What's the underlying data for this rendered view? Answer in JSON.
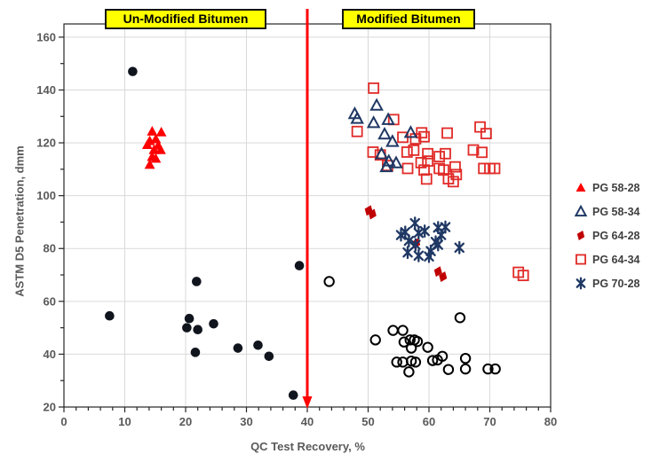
{
  "chart_data": {
    "type": "scatter",
    "title": "",
    "xlabel": "QC Test Recovery, %",
    "ylabel": "ASTM D5 Penetration, dmm",
    "xlim": [
      0,
      80
    ],
    "ylim": [
      20,
      165
    ],
    "x_ticks": [
      0,
      10,
      20,
      30,
      40,
      50,
      60,
      70,
      80
    ],
    "x_minor_step": 2,
    "y_ticks": [
      20,
      40,
      60,
      80,
      100,
      120,
      140,
      160
    ],
    "y_minor_step": 10,
    "grid": true,
    "gridline_color": "#d9d9d9",
    "border_color": "#262626",
    "axis_text_color": "#595959",
    "divider": {
      "x": 40,
      "color": "#ff0000",
      "arrow": "down"
    },
    "region_labels": [
      {
        "text": "Un-Modified Bitumen",
        "bg": "#ffff00"
      },
      {
        "text": "Modified Bitumen",
        "bg": "#ffff00"
      }
    ],
    "legend_position": "right",
    "legend_order": [
      "pg-58-28",
      "pg-58-34",
      "pg-64-28",
      "pg-64-34",
      "pg-70-28"
    ],
    "series": [
      {
        "id": "unmodified-bitumen",
        "label": "",
        "in_legend": false,
        "marker": "circle-filled",
        "color": "#10141d",
        "points": [
          [
            7.5,
            54.5
          ],
          [
            11.3,
            147
          ],
          [
            21.8,
            67.5
          ],
          [
            20.6,
            53.5
          ],
          [
            20.2,
            50
          ],
          [
            22,
            49.3
          ],
          [
            24.6,
            51.5
          ],
          [
            21.6,
            40.7
          ],
          [
            28.6,
            42.3
          ],
          [
            31.9,
            43.4
          ],
          [
            33.7,
            39.2
          ],
          [
            38.7,
            73.5
          ],
          [
            37.7,
            24.5
          ]
        ]
      },
      {
        "id": "modified-bitumen-unlabeled",
        "label": "",
        "in_legend": false,
        "marker": "circle-open",
        "color": "#000000",
        "points": [
          [
            43.6,
            67.5
          ],
          [
            51.2,
            45.4
          ],
          [
            54.1,
            49
          ],
          [
            55.7,
            49
          ],
          [
            55.9,
            44.6
          ],
          [
            56.9,
            45.4
          ],
          [
            57.6,
            45.4
          ],
          [
            58.1,
            44.8
          ],
          [
            57.1,
            42.3
          ],
          [
            59.8,
            42.6
          ],
          [
            65.1,
            53.8
          ],
          [
            54.7,
            37
          ],
          [
            55.7,
            37
          ],
          [
            57.1,
            37.4
          ],
          [
            57.8,
            37
          ],
          [
            60.6,
            37.6
          ],
          [
            61.4,
            37.8
          ],
          [
            62.2,
            39.2
          ],
          [
            56.7,
            33.3
          ],
          [
            63.2,
            34.2
          ],
          [
            66,
            38.4
          ],
          [
            66,
            34.4
          ],
          [
            69.7,
            34.4
          ],
          [
            70.9,
            34.4
          ]
        ]
      },
      {
        "id": "pg-64-34",
        "label": "PG 64-34",
        "in_legend": true,
        "marker": "square-open",
        "color": "#e02b28",
        "points": [
          [
            50.9,
            140.7
          ],
          [
            48.2,
            124.3
          ],
          [
            54.2,
            128.8
          ],
          [
            55.7,
            122.1
          ],
          [
            57.8,
            121.5
          ],
          [
            59.2,
            122.3
          ],
          [
            58.8,
            123.8
          ],
          [
            63,
            123.7
          ],
          [
            68.4,
            126
          ],
          [
            69.4,
            123.5
          ],
          [
            50.8,
            116.5
          ],
          [
            52,
            115.4
          ],
          [
            53.2,
            111.4
          ],
          [
            56.4,
            116.5
          ],
          [
            57.5,
            117.2
          ],
          [
            59.8,
            115.9
          ],
          [
            61.7,
            114.8
          ],
          [
            62.7,
            115.9
          ],
          [
            67.3,
            117.3
          ],
          [
            68.7,
            116.4
          ],
          [
            56.5,
            110.3
          ],
          [
            58.7,
            112.5
          ],
          [
            59.8,
            113.1
          ],
          [
            59.2,
            109.7
          ],
          [
            61.7,
            110.3
          ],
          [
            62.4,
            109.7
          ],
          [
            64.3,
            110.9
          ],
          [
            64.5,
            108
          ],
          [
            59.6,
            106.3
          ],
          [
            63.2,
            106.4
          ],
          [
            64,
            105.3
          ],
          [
            69,
            110.3
          ],
          [
            70,
            110.3
          ],
          [
            70.8,
            110.3
          ],
          [
            74.7,
            71
          ],
          [
            75.5,
            69.8
          ]
        ]
      },
      {
        "id": "pg-58-34",
        "label": "PG 58-34",
        "in_legend": true,
        "marker": "triangle-open",
        "color": "#1f3864",
        "points": [
          [
            47.8,
            131
          ],
          [
            48.2,
            129.2
          ],
          [
            51.4,
            134.2
          ],
          [
            50.9,
            127.6
          ],
          [
            53.3,
            128.8
          ],
          [
            57,
            123.9
          ],
          [
            52.7,
            123.3
          ],
          [
            54,
            120.5
          ],
          [
            52.2,
            115.8
          ],
          [
            53.4,
            113.1
          ],
          [
            54.6,
            112.4
          ],
          [
            53,
            110.9
          ]
        ]
      },
      {
        "id": "pg-58-28",
        "label": "PG 58-28",
        "in_legend": true,
        "marker": "triangle-filled",
        "color": "#fe0000",
        "points": [
          [
            14.5,
            124.4
          ],
          [
            16,
            124.1
          ],
          [
            14.1,
            120.8
          ],
          [
            15.1,
            121.5
          ],
          [
            13.7,
            119.3
          ],
          [
            15.5,
            119.1
          ],
          [
            14.8,
            117.4
          ],
          [
            15.9,
            117.4
          ],
          [
            14.5,
            114.8
          ],
          [
            15.1,
            114.1
          ],
          [
            14.1,
            111.8
          ]
        ]
      },
      {
        "id": "pg-64-28",
        "label": "PG 64-28",
        "in_legend": true,
        "marker": "diamond-filled",
        "color": "#c00000",
        "points": [
          [
            50.1,
            94.4
          ],
          [
            50.7,
            93
          ],
          [
            57.9,
            82
          ],
          [
            61.5,
            71.3
          ],
          [
            62.3,
            69.3
          ]
        ]
      },
      {
        "id": "pg-70-28",
        "label": "PG 70-28",
        "in_legend": true,
        "marker": "star6",
        "color": "#1f3864",
        "points": [
          [
            57.7,
            89.6
          ],
          [
            59.3,
            86.6
          ],
          [
            58.3,
            85.9
          ],
          [
            56.1,
            86.2
          ],
          [
            55.4,
            85.1
          ],
          [
            61.5,
            87.9
          ],
          [
            62.7,
            88.1
          ],
          [
            62,
            85.1
          ],
          [
            56.7,
            82.9
          ],
          [
            57.8,
            81.4
          ],
          [
            61.1,
            82.5
          ],
          [
            61.5,
            81.4
          ],
          [
            60.3,
            79
          ],
          [
            58.3,
            77.3
          ],
          [
            60,
            77
          ],
          [
            65,
            80.3
          ],
          [
            56.5,
            78.5
          ]
        ]
      }
    ]
  }
}
